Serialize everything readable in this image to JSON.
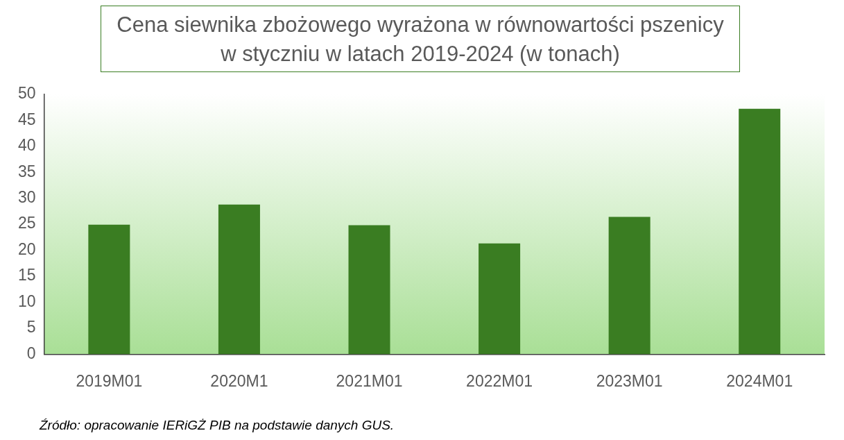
{
  "chart_data": {
    "type": "bar",
    "title": "Cena siewnika zbożowego wyrażona w równowartości pszenicy\nw styczniu w latach 2019-2024 (w tonach)",
    "categories": [
      "2019M01",
      "2020M1",
      "2021M01",
      "2022M01",
      "2023M01",
      "2024M01"
    ],
    "values": [
      24.9,
      28.8,
      24.8,
      21.3,
      26.4,
      47.2
    ],
    "color": "#3a7d22",
    "ylim": [
      0,
      50
    ],
    "yticks": [
      0,
      5,
      10,
      15,
      20,
      25,
      30,
      35,
      40,
      45,
      50
    ],
    "grid": false,
    "legend": false,
    "annotations": [
      "Źródło: opracowanie IERiGŻ PIB na podstawie danych GUS."
    ]
  }
}
